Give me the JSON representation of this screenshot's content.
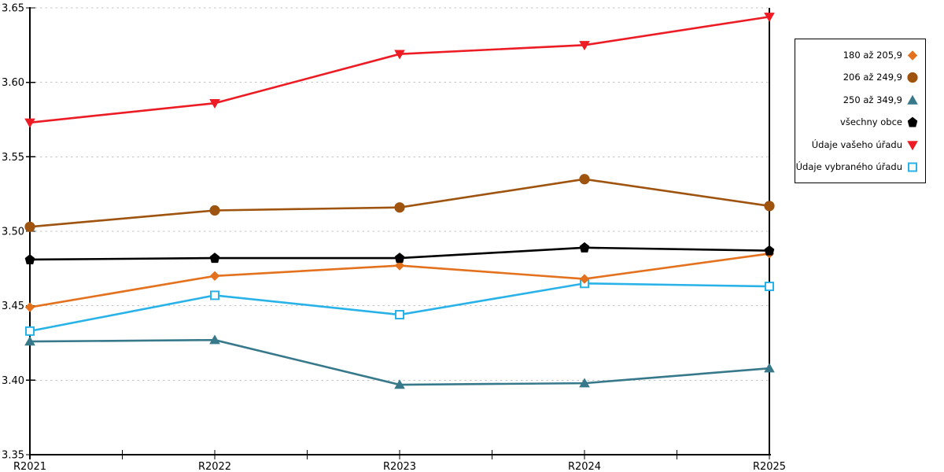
{
  "chart_data": {
    "type": "line",
    "title": "",
    "xlabel": "",
    "ylabel": "",
    "categories": [
      "R2021",
      "R2022",
      "R2023",
      "R2024",
      "R2025"
    ],
    "ylim": [
      3.35,
      3.65
    ],
    "yticks": [
      3.65,
      3.6,
      3.55,
      3.5,
      3.45,
      3.4,
      3.35
    ],
    "ytick_labels": [
      "3.65",
      "3.60",
      "3.55",
      "3.50",
      "3.45",
      "3.40",
      "3.35"
    ],
    "grid": "horizontal-dotted",
    "grid_color": "#c3c3c3",
    "axis_color": "#000000",
    "legend_position": "right-outside-box",
    "series": [
      {
        "name": "180 až 205,9",
        "color": "#e4711e",
        "marker": "diamond",
        "values": [
          3.449,
          3.47,
          3.477,
          3.468,
          3.485
        ]
      },
      {
        "name": "206 až 249,9",
        "color": "#9e530f",
        "marker": "circle",
        "values": [
          3.503,
          3.514,
          3.516,
          3.535,
          3.517
        ]
      },
      {
        "name": "250 až 349,9",
        "color": "#37798b",
        "marker": "triangle-up",
        "values": [
          3.426,
          3.427,
          3.397,
          3.398,
          3.408
        ]
      },
      {
        "name": "všechny obce",
        "color": "#000000",
        "marker": "pentagon",
        "values": [
          3.481,
          3.482,
          3.482,
          3.489,
          3.487
        ]
      },
      {
        "name": "Údaje vašeho úřadu",
        "color": "#ed1c24",
        "marker": "triangle-down",
        "values": [
          3.573,
          3.586,
          3.619,
          3.625,
          3.644
        ]
      },
      {
        "name": "Údaje vybraného úřadu",
        "color": "#29b2e8",
        "marker": "square-open",
        "values": [
          3.433,
          3.457,
          3.444,
          3.465,
          3.463
        ]
      }
    ]
  }
}
